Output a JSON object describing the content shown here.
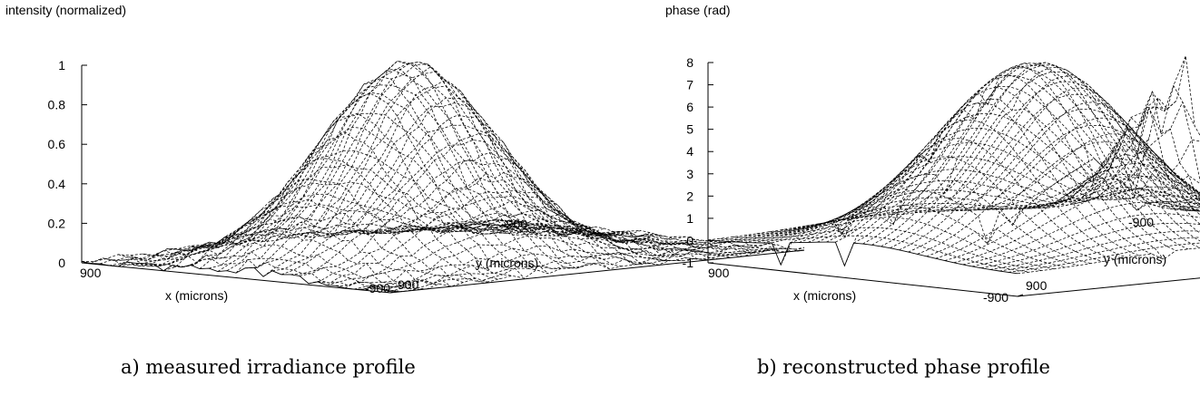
{
  "chart_data": [
    {
      "type": "surface",
      "zlabel": "intensity (normalized)",
      "xlabel": "x (microns)",
      "ylabel": "y (microns)",
      "x_ticks": [
        "900",
        "-900"
      ],
      "y_ticks": [
        "900",
        "-900"
      ],
      "z_ticks": [
        "0",
        "0.2",
        "0.4",
        "0.6",
        "0.8",
        "1"
      ],
      "xlim": [
        900,
        -900
      ],
      "ylim": [
        900,
        -900
      ],
      "zlim": [
        0,
        1
      ],
      "grid": false,
      "surface": {
        "shape": "gaussian",
        "peak": 1.0,
        "peak_x": 0,
        "peak_y": 150,
        "sigma_x": 330,
        "sigma_y": 300,
        "noise": 0.02
      },
      "caption": "a) measured irradiance profile"
    },
    {
      "type": "surface",
      "zlabel": "phase (rad)",
      "xlabel": "x (microns)",
      "ylabel": "y (microns)",
      "x_ticks": [
        "900",
        "-900"
      ],
      "y_ticks": [
        "900",
        "-900"
      ],
      "z_ticks": [
        "-1",
        "0",
        "1",
        "2",
        "3",
        "4",
        "5",
        "6",
        "7",
        "8"
      ],
      "xlim": [
        900,
        -900
      ],
      "ylim": [
        900,
        -900
      ],
      "zlim": [
        -1,
        8
      ],
      "grid": false,
      "surface": {
        "shape": "gaussian-with-edge-spikes",
        "peak": 8.0,
        "peak_x": 0,
        "peak_y": 150,
        "sigma_x": 360,
        "sigma_y": 330,
        "edge_spike_max": 8.5,
        "min": -1
      },
      "caption": "b) reconstructed phase profile"
    }
  ]
}
